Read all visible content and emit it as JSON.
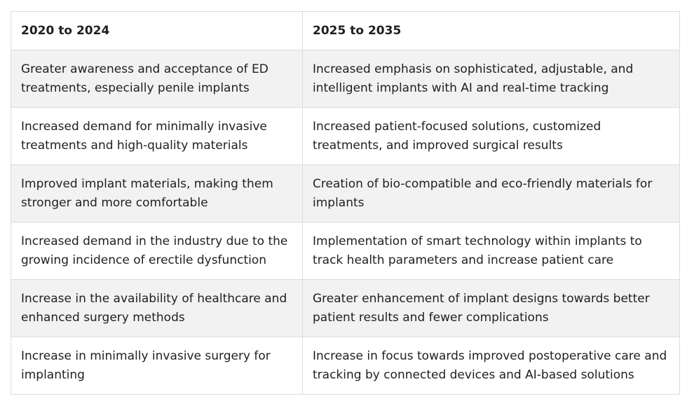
{
  "table": {
    "headers": [
      "2020 to 2024",
      "2025 to 2035"
    ],
    "rows": [
      [
        "Greater awareness and acceptance of ED treatments, especially penile implants",
        "Increased emphasis on sophisticated, adjustable, and intelligent implants with AI and real-time tracking"
      ],
      [
        "Increased demand for minimally invasive treatments and high-quality materials",
        "Increased patient-focused solutions, customized treatments, and improved surgical results"
      ],
      [
        "Improved implant materials, making them stronger and more comfortable",
        "Creation of bio-compatible and eco-friendly materials for implants"
      ],
      [
        "Increased demand in the industry due to the growing incidence of erectile dysfunction",
        "Implementation of smart technology within implants to track health parameters and increase patient care"
      ],
      [
        "Increase in the availability of healthcare and enhanced surgery methods",
        "Greater enhancement of implant designs towards better patient results and fewer complications"
      ],
      [
        "Increase in minimally invasive surgery for implanting",
        "Increase in focus towards improved postoperative care and tracking by connected devices and AI-based solutions"
      ]
    ]
  }
}
